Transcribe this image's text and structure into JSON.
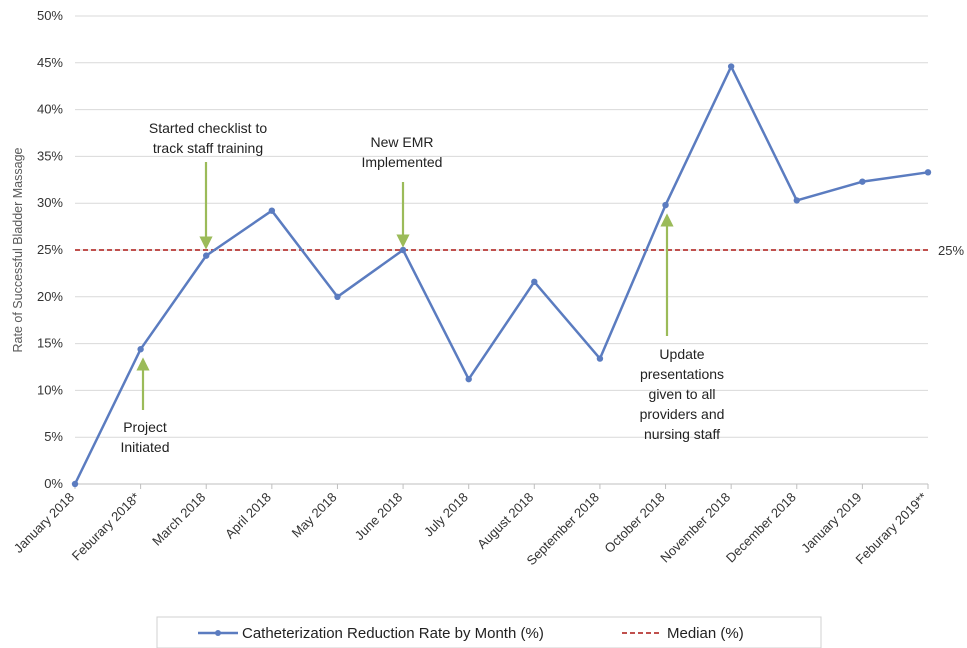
{
  "chart_data": {
    "type": "line",
    "categories": [
      "January 2018",
      "Feburary 2018*",
      "March 2018",
      "April 2018",
      "May 2018",
      "June 2018",
      "July 2018",
      "August 2018",
      "September 2018",
      "October 2018",
      "November 2018",
      "December 2018",
      "January 2019",
      "Feburary 2019**"
    ],
    "series": [
      {
        "name": "Catheterization Reduction Rate by Month (%)",
        "values": [
          0.0,
          14.4,
          24.4,
          29.2,
          20.0,
          25.0,
          11.2,
          21.6,
          13.4,
          29.8,
          44.6,
          30.3,
          32.3,
          33.3
        ],
        "color": "#5B7CC0"
      }
    ],
    "median": {
      "name": "Median (%)",
      "value": 25,
      "label": "25%",
      "color": "#C0504D"
    },
    "ylabel": "Rate of Successful Bladder Massage",
    "xlabel": "",
    "ylim": [
      0,
      50
    ],
    "yticks": [
      "0%",
      "5%",
      "10%",
      "15%",
      "20%",
      "25%",
      "30%",
      "35%",
      "40%",
      "45%",
      "50%"
    ],
    "grid": true,
    "legend": "bottom",
    "annotations": [
      {
        "lines": [
          "Project",
          "Initiated"
        ],
        "category": 1,
        "arrow": "up",
        "color": "#9BBB59"
      },
      {
        "lines": [
          "Started checklist to",
          "track staff training"
        ],
        "category": 2,
        "arrow": "down",
        "color": "#9BBB59"
      },
      {
        "lines": [
          "New EMR",
          "Implemented"
        ],
        "category": 5,
        "arrow": "down",
        "color": "#9BBB59"
      },
      {
        "lines": [
          "Update",
          "presentations",
          "given to all",
          "providers and",
          "nursing staff"
        ],
        "category": 9,
        "arrow": "up",
        "color": "#9BBB59"
      }
    ]
  }
}
